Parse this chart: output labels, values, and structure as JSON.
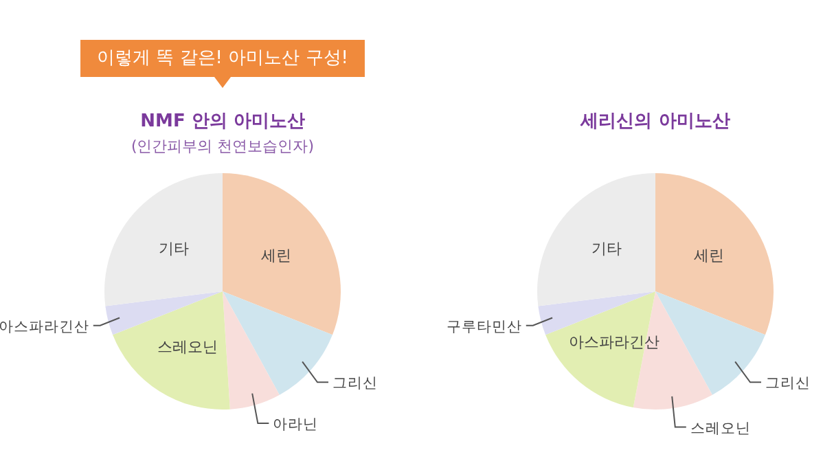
{
  "chart_data": [
    {
      "type": "pie",
      "title": "NMF 안의 아미노산",
      "subtitle": "(인간피부의 천연보습인자)",
      "annotations": [
        "이렇게 똑 같은! 아미노산 구성!"
      ],
      "categories": [
        "세린",
        "그리신",
        "아라닌",
        "스레오닌",
        "아스파라긴산",
        "기타"
      ],
      "values": [
        31,
        11,
        7,
        20,
        4,
        27
      ],
      "colors": [
        "#f5cdb0",
        "#cfe5ee",
        "#f8dedb",
        "#e2eeb2",
        "#dcdcf2",
        "#ececec"
      ]
    },
    {
      "type": "pie",
      "title": "세리신의 아미노산",
      "categories": [
        "세린",
        "그리신",
        "스레오닌",
        "아스파라긴산",
        "구루타민산",
        "기타"
      ],
      "values": [
        31,
        11,
        11,
        16,
        4,
        27
      ],
      "colors": [
        "#f5cdb0",
        "#cfe5ee",
        "#f8dedb",
        "#e2eeb2",
        "#dcdcf2",
        "#ececec"
      ]
    }
  ]
}
